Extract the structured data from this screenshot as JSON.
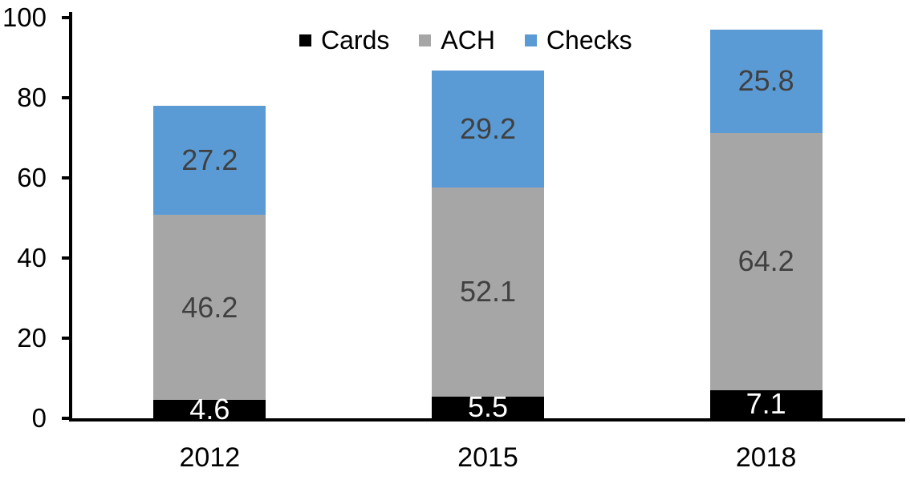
{
  "chart_data": {
    "type": "bar",
    "stacked": true,
    "title": "",
    "categories": [
      "2012",
      "2015",
      "2018"
    ],
    "series": [
      {
        "name": "Cards",
        "color": "#000000",
        "label_color": "#ffffff",
        "values": [
          4.6,
          5.5,
          7.1
        ]
      },
      {
        "name": "ACH",
        "color": "#a6a6a6",
        "label_color": "#404040",
        "values": [
          46.2,
          52.1,
          64.2
        ]
      },
      {
        "name": "Checks",
        "color": "#5b9bd5",
        "label_color": "#404040",
        "values": [
          27.2,
          29.2,
          25.8
        ]
      }
    ],
    "totals": [
      78.0,
      86.8,
      97.1
    ],
    "xlabel": "",
    "ylabel": "",
    "ylim": [
      0,
      100
    ],
    "y_ticks": [
      0,
      20,
      40,
      60,
      80,
      100
    ],
    "grid": false,
    "data_labels_shown": true,
    "legend_position": "top",
    "axis_color": "#000000",
    "text_color": "#000000"
  }
}
